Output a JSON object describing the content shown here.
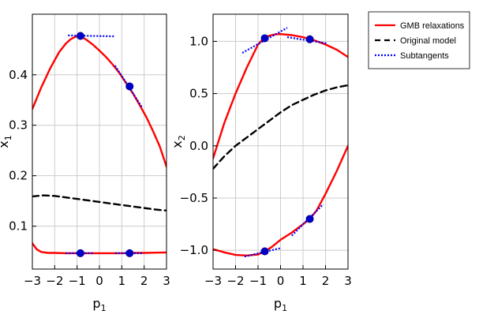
{
  "legend": {
    "entries": [
      {
        "label": "GMB relaxations",
        "style": "solid",
        "color": "#ff0000"
      },
      {
        "label": "Original model",
        "style": "dashed",
        "color": "#000000"
      },
      {
        "label": "Subtangents",
        "style": "dotted",
        "color": "#0000ff"
      }
    ]
  },
  "chart_data": [
    {
      "type": "line",
      "xlabel": "p",
      "xlabel_sub": "1",
      "ylabel": "x",
      "ylabel_sub": "1",
      "xlim": [
        -3,
        3
      ],
      "ylim": [
        0.015,
        0.52
      ],
      "xticks": [
        -3,
        -2,
        -1,
        0,
        1,
        2,
        3
      ],
      "xtick_labels": [
        "−3",
        "−2",
        "−1",
        "0",
        "1",
        "2",
        "3"
      ],
      "yticks": [
        0.1,
        0.2,
        0.3,
        0.4
      ],
      "ytick_labels": [
        "0.1",
        "0.2",
        "0.3",
        "0.4"
      ],
      "grid": true,
      "series": [
        {
          "name": "GMB relaxations",
          "style": "solid",
          "color": "#ff0000",
          "x": [
            -3,
            -2.6,
            -2.2,
            -1.8,
            -1.5,
            -1.3,
            -1.1,
            -0.9,
            -0.6,
            -0.3,
            0,
            0.3,
            0.6,
            0.9,
            1.2,
            1.5,
            1.8,
            2.1,
            2.4,
            2.7,
            3
          ],
          "y": [
            0.332,
            0.375,
            0.413,
            0.445,
            0.462,
            0.47,
            0.475,
            0.477,
            0.47,
            0.46,
            0.448,
            0.435,
            0.42,
            0.403,
            0.383,
            0.363,
            0.34,
            0.316,
            0.288,
            0.258,
            0.218
          ]
        },
        {
          "name": "GMB relaxations",
          "style": "solid",
          "color": "#ff0000",
          "x": [
            -3,
            -2.8,
            -2.6,
            -2.3,
            -2,
            -1.5,
            -1,
            -0.5,
            0,
            0.5,
            1,
            1.5,
            2,
            2.5,
            3
          ],
          "y": [
            0.066,
            0.054,
            0.049,
            0.047,
            0.047,
            0.0465,
            0.0465,
            0.0465,
            0.0465,
            0.0465,
            0.0465,
            0.047,
            0.047,
            0.0475,
            0.048
          ]
        },
        {
          "name": "Original model",
          "style": "dashed",
          "color": "#000000",
          "x": [
            -3,
            -2.5,
            -2,
            -1.5,
            -1,
            -0.5,
            0,
            0.5,
            1,
            1.5,
            2,
            2.5,
            3
          ],
          "y": [
            0.159,
            0.161,
            0.16,
            0.157,
            0.154,
            0.151,
            0.148,
            0.145,
            0.142,
            0.139,
            0.136,
            0.133,
            0.131
          ]
        },
        {
          "name": "Subtangents",
          "style": "dotted",
          "color": "#0000ff",
          "x": [
            -1.4,
            0.7
          ],
          "y": [
            0.478,
            0.476
          ]
        },
        {
          "name": "Subtangents",
          "style": "dotted",
          "color": "#0000ff",
          "x": [
            0.7,
            1.9
          ],
          "y": [
            0.418,
            0.336
          ]
        },
        {
          "name": "Subtangents",
          "style": "dotted",
          "color": "#0000ff",
          "x": [
            -1.5,
            -0.3
          ],
          "y": [
            0.0465,
            0.0465
          ]
        },
        {
          "name": "Subtangents",
          "style": "dotted",
          "color": "#0000ff",
          "x": [
            0.7,
            1.9
          ],
          "y": [
            0.0465,
            0.0465
          ]
        }
      ],
      "points": {
        "x": [
          -0.85,
          1.35,
          -0.85,
          1.35
        ],
        "y": [
          0.477,
          0.377,
          0.0465,
          0.0465
        ],
        "color": "#0000cc"
      }
    },
    {
      "type": "line",
      "xlabel": "p",
      "xlabel_sub": "1",
      "ylabel": "x",
      "ylabel_sub": "2",
      "xlim": [
        -3,
        3
      ],
      "ylim": [
        -1.18,
        1.26
      ],
      "xticks": [
        -3,
        -2,
        -1,
        0,
        1,
        2,
        3
      ],
      "xtick_labels": [
        "−3",
        "−2",
        "−1",
        "0",
        "1",
        "2",
        "3"
      ],
      "yticks": [
        -1.0,
        -0.5,
        0.0,
        0.5,
        1.0
      ],
      "ytick_labels": [
        "−1.0",
        "−0.5",
        "0.0",
        "0.5",
        "1.0"
      ],
      "grid": true,
      "series": [
        {
          "name": "GMB relaxations",
          "style": "solid",
          "color": "#ff0000",
          "x": [
            -3,
            -2.5,
            -2,
            -1.5,
            -1,
            -0.7,
            -0.4,
            -0.2,
            0,
            0.5,
            1,
            1.5,
            2,
            2.5,
            3
          ],
          "y": [
            -0.12,
            0.22,
            0.5,
            0.75,
            0.97,
            1.04,
            1.06,
            1.068,
            1.07,
            1.06,
            1.04,
            1.01,
            0.97,
            0.92,
            0.85
          ]
        },
        {
          "name": "GMB relaxations",
          "style": "solid",
          "color": "#ff0000",
          "x": [
            -3,
            -2.5,
            -2,
            -1.5,
            -1,
            -0.7,
            -0.4,
            0,
            0.5,
            1,
            1.3,
            1.6,
            2,
            2.5,
            3
          ],
          "y": [
            -0.99,
            -1.02,
            -1.045,
            -1.05,
            -1.04,
            -1.01,
            -0.97,
            -0.9,
            -0.83,
            -0.75,
            -0.7,
            -0.62,
            -0.46,
            -0.24,
            0.0
          ]
        },
        {
          "name": "Original model",
          "style": "dashed",
          "color": "#000000",
          "x": [
            -3,
            -2.5,
            -2,
            -1.5,
            -1,
            -0.5,
            0,
            0.5,
            1,
            1.5,
            2,
            2.5,
            3
          ],
          "y": [
            -0.22,
            -0.1,
            0.0,
            0.08,
            0.16,
            0.24,
            0.32,
            0.39,
            0.44,
            0.49,
            0.53,
            0.56,
            0.58
          ]
        },
        {
          "name": "Subtangents",
          "style": "dotted",
          "color": "#0000ff",
          "x": [
            -1.7,
            0.3
          ],
          "y": [
            0.89,
            1.13
          ]
        },
        {
          "name": "Subtangents",
          "style": "dotted",
          "color": "#0000ff",
          "x": [
            0.3,
            2.1
          ],
          "y": [
            1.04,
            0.98
          ]
        },
        {
          "name": "Subtangents",
          "style": "dotted",
          "color": "#0000ff",
          "x": [
            -1.6,
            0.0
          ],
          "y": [
            -1.06,
            -0.98
          ]
        },
        {
          "name": "Subtangents",
          "style": "dotted",
          "color": "#0000ff",
          "x": [
            0.5,
            1.9
          ],
          "y": [
            -0.86,
            -0.56
          ]
        }
      ],
      "points": {
        "x": [
          -0.7,
          1.3,
          -0.7,
          1.3
        ],
        "y": [
          1.03,
          1.02,
          -1.01,
          -0.7
        ],
        "color": "#0000cc"
      }
    }
  ]
}
